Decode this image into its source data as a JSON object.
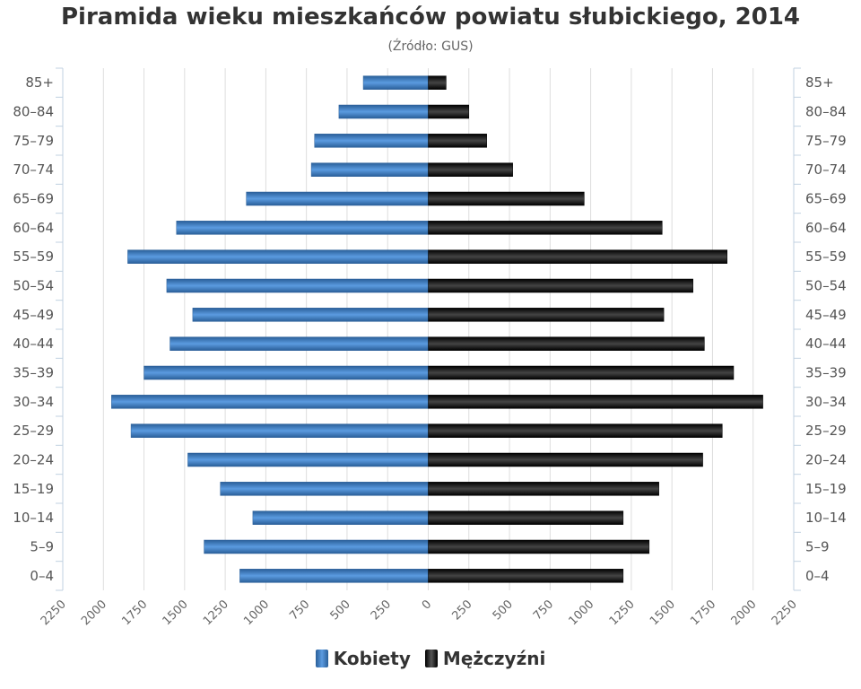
{
  "title": "Piramida wieku mieszkańców powiatu słubickiego, 2014",
  "subtitle": "(Źródło: GUS)",
  "colors": {
    "female": "#3a78b8",
    "male": "#1a1a1a",
    "grid": "#dddddd",
    "axis_text": "#666666"
  },
  "legend": {
    "female_label": "Kobiety",
    "male_label": "Mężczyźni"
  },
  "chart_data": {
    "type": "bar",
    "orientation": "horizontal-pyramid",
    "categories": [
      "85+",
      "80-84",
      "75-79",
      "70-74",
      "65-69",
      "60-64",
      "55-59",
      "50-54",
      "45-49",
      "40-44",
      "35-39",
      "30-34",
      "25-29",
      "20-24",
      "15-19",
      "10-14",
      "5-9",
      "0-4"
    ],
    "series": [
      {
        "name": "Kobiety",
        "side": "left",
        "values": [
          400,
          550,
          700,
          720,
          1120,
          1550,
          1850,
          1610,
          1450,
          1590,
          1750,
          1950,
          1830,
          1480,
          1280,
          1080,
          1380,
          1160
        ]
      },
      {
        "name": "Mężczyźni",
        "side": "right",
        "values": [
          110,
          250,
          360,
          520,
          960,
          1440,
          1840,
          1630,
          1450,
          1700,
          1880,
          2060,
          1810,
          1690,
          1420,
          1200,
          1360,
          1200
        ]
      }
    ],
    "xlim": [
      -2250,
      2250
    ],
    "x_ticks": [
      "2250",
      "2000",
      "1750",
      "1500",
      "1250",
      "1000",
      "750",
      "500",
      "250",
      "0",
      "250",
      "500",
      "750",
      "1000",
      "1250",
      "1500",
      "1750",
      "2000",
      "2250"
    ],
    "grid": true,
    "legend_position": "bottom-center"
  }
}
